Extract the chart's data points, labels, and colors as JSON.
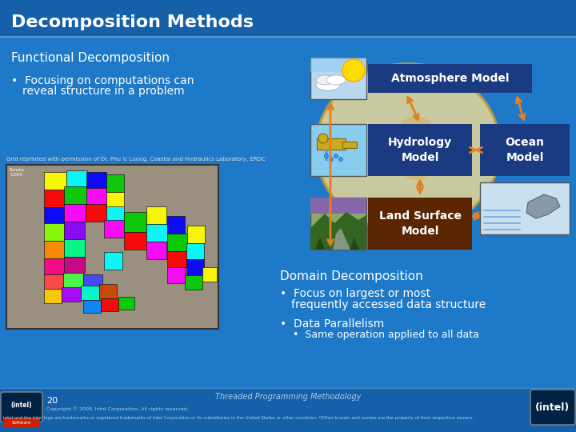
{
  "bg_color": "#1e7ac8",
  "title": "Decomposition Methods",
  "title_color": "#ffffff",
  "title_fontsize": 16,
  "functional_title": "Functional Decomposition",
  "functional_color": "#ffffff",
  "functional_fontsize": 11,
  "bullet1a": "Focusing on computations can",
  "bullet1b": "reveal structure in a problem",
  "bullet_color": "#ffffff",
  "bullet_fontsize": 10,
  "domain_title": "Domain Decomposition",
  "domain_color": "#ffffff",
  "domain_fontsize": 11,
  "bullet2a": "Focus on largest or most",
  "bullet2b": "frequently accessed data structure",
  "bullet2_fontsize": 10,
  "bullet3": "Data Parallelism",
  "bullet3_fontsize": 10,
  "bullet4": "Same operation applied to all data",
  "bullet4_fontsize": 9,
  "grid_credit": "Grid reprinted with permission of Dr. Phu V. Luong, Coastal and Hydraulics Laboratory, ERDC",
  "grid_credit_color": "#dddddd",
  "grid_credit_fontsize": 5,
  "footer_center": "Threaded Programming Methodology",
  "footer_color": "#aaccee",
  "footer_fontsize": 7,
  "footer_num": "20",
  "footer_num_color": "#ffffff",
  "footer_num_fontsize": 8,
  "copyright1": "Copyright © 2008, Intel Corporation. All rights reserved.",
  "copyright2": "Intel and the Intel logo are trademarks or registered trademarks of Intel Corporation or its subsidiaries in the United States or other countries. *Other brands and names are the property of their respective owners.",
  "copyright_color": "#aaccee",
  "copyright_fontsize": 4.5,
  "atm_box_color": "#1a3a82",
  "atm_box_text": "Atmosphere Model",
  "hydro_box_color": "#1a3a82",
  "hydro_box_text": "Hydrology\nModel",
  "ocean_box_color": "#1a3a82",
  "ocean_box_text": "Ocean\nModel",
  "land_box_color": "#5a2500",
  "land_box_text": "Land Surface\nModel",
  "globe_color": "#e8d898",
  "arrow_color": "#e08020",
  "img_bg": "#999080",
  "map_colors": [
    "#ff0000",
    "#00cc00",
    "#0000ff",
    "#ffff00",
    "#ff00ff",
    "#00ffff",
    "#ff8800",
    "#8800ff",
    "#00ff88",
    "#ff0088",
    "#88ff00",
    "#cc0088",
    "#ff4444",
    "#44ff44",
    "#4444ff",
    "#ffcc00",
    "#aa00ff",
    "#00ffcc",
    "#cc4400",
    "#0088ff"
  ]
}
